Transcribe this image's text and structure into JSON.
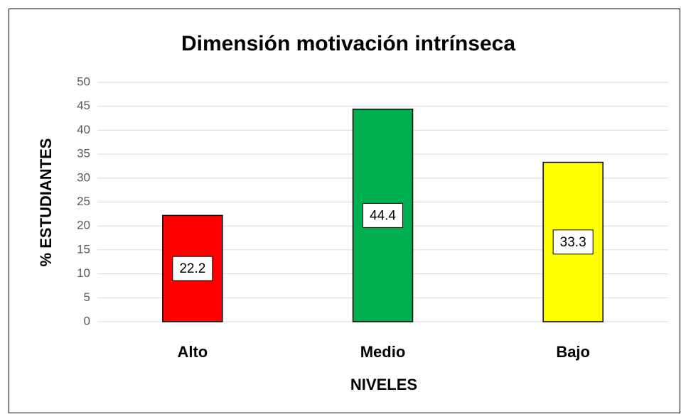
{
  "chart_data": {
    "type": "bar",
    "title": "Dimensión motivación intrínseca",
    "categories": [
      "Alto",
      "Medio",
      "Bajo"
    ],
    "values": [
      22.2,
      44.4,
      33.3
    ],
    "colors": [
      "#ff0000",
      "#00b050",
      "#ffff00"
    ],
    "xlabel": "NIVELES",
    "ylabel": "%  ESTUDIANTES",
    "ylim": [
      0,
      50
    ],
    "yticks": [
      0,
      5,
      10,
      15,
      20,
      25,
      30,
      35,
      40,
      45,
      50
    ],
    "grid": true
  }
}
